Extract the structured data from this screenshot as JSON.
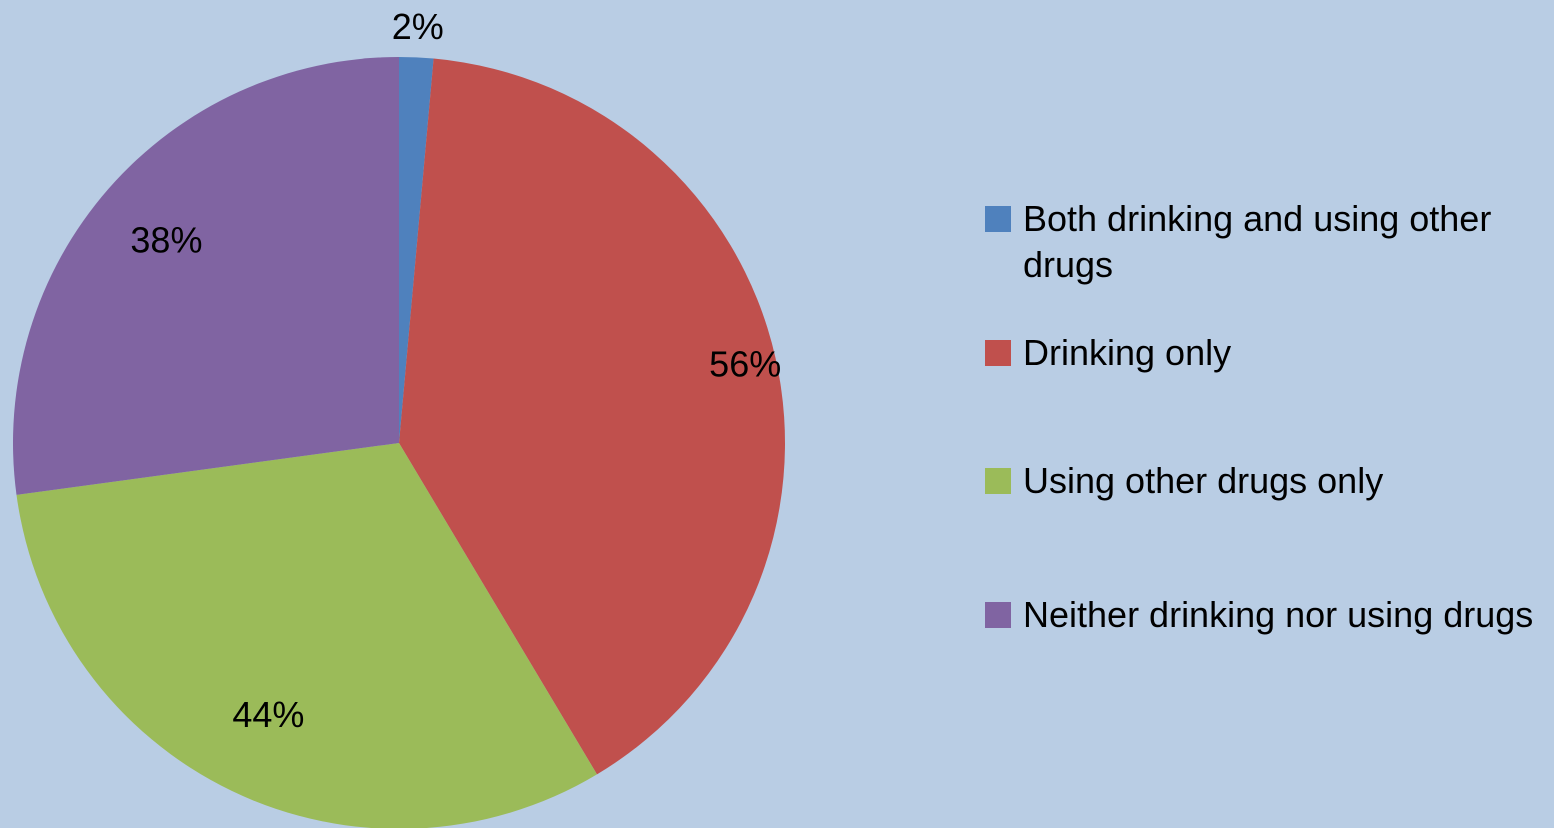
{
  "chart_data": {
    "type": "pie",
    "title": "",
    "slices": [
      {
        "label": "Both drinking and using other drugs",
        "value": 2,
        "display": "2%",
        "color": "#4f81bd"
      },
      {
        "label": "Drinking only",
        "value": 56,
        "display": "56%",
        "color": "#c0504d"
      },
      {
        "label": "Using other drugs only",
        "value": 44,
        "display": "44%",
        "color": "#9bbb59"
      },
      {
        "label": "Neither drinking nor using drugs",
        "value": 38,
        "display": "38%",
        "color": "#8064a2"
      }
    ],
    "legend_position": "right",
    "background": "#b9cde4"
  }
}
